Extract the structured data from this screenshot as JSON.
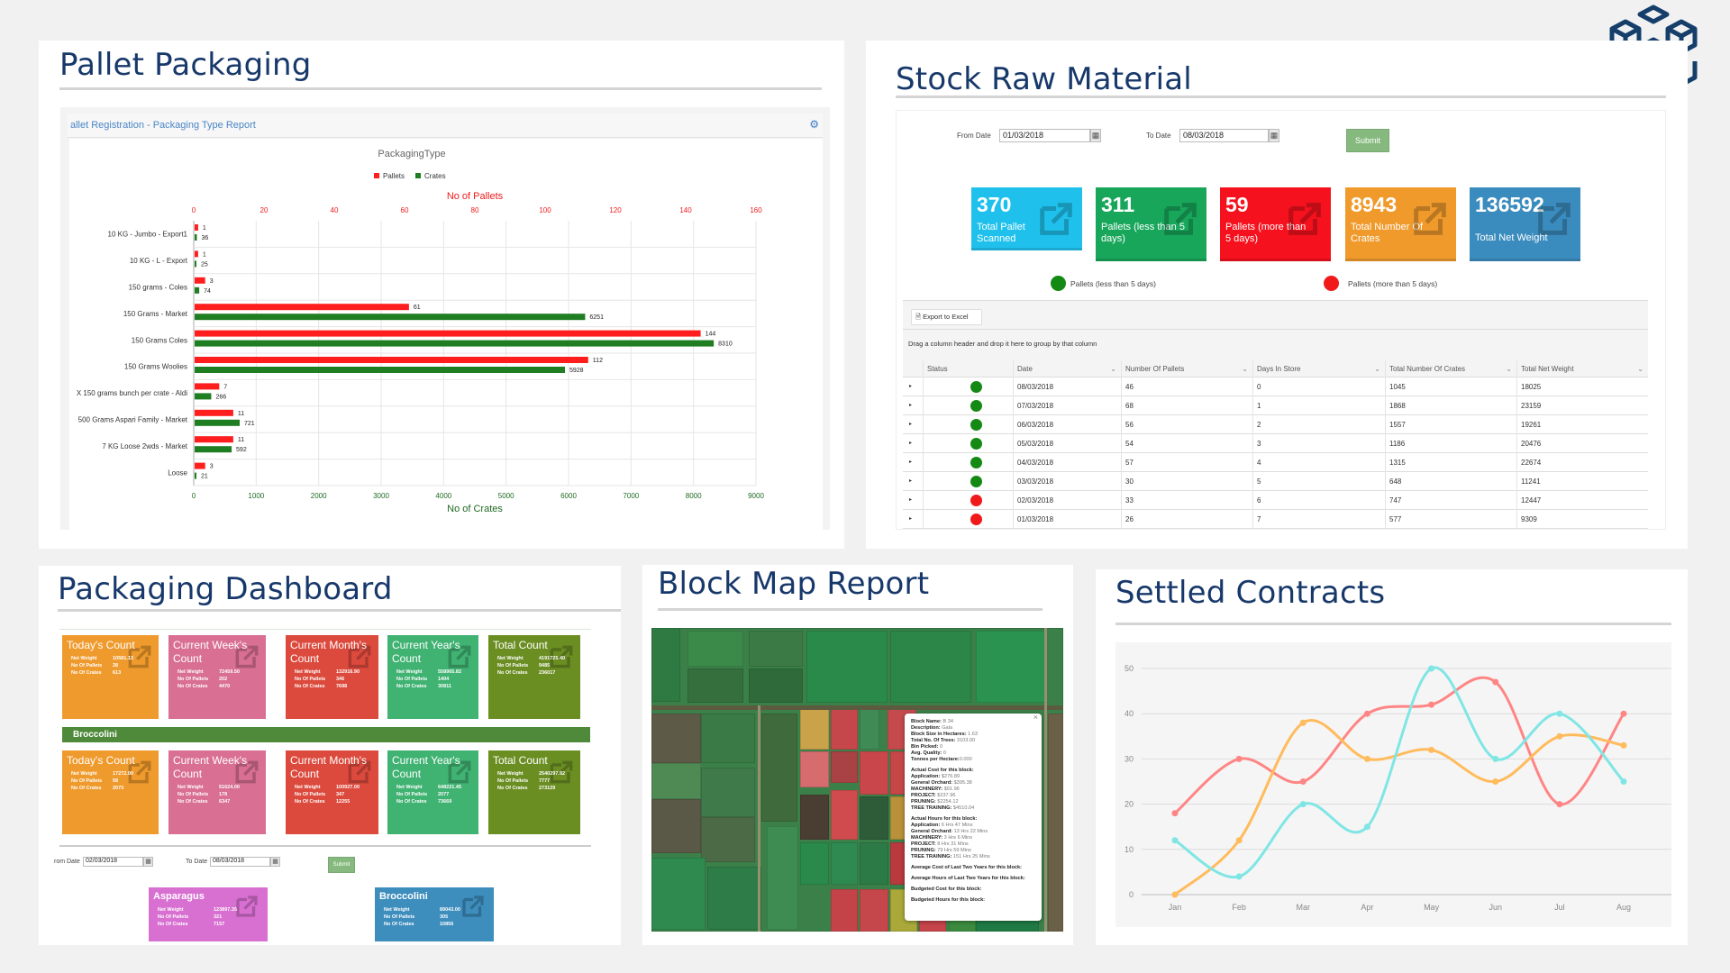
{
  "pallet_packaging": {
    "title": "Pallet Packaging",
    "report_header": "allet Registration - Packaging Type Report",
    "settings_icon": "gear-icon",
    "chart_data": {
      "type": "bar",
      "orientation": "horizontal",
      "title": "PackagingType",
      "categories": [
        "10 KG - Jumbo - Export1",
        "10 KG - L - Export",
        "150 grams - Coles",
        "150 Grams - Market",
        "150 Grams Coles",
        "150 Grams Woolies",
        "X 150 grams bunch per crate - Aldi",
        "500 Grams Aspari Family - Market",
        "7 KG Loose 2wds - Market",
        "Loose"
      ],
      "series": [
        {
          "name": "Pallets",
          "color": "#ff1e1e",
          "axis": "top",
          "values": [
            1,
            1,
            3,
            61,
            144,
            112,
            7,
            11,
            11,
            3
          ]
        },
        {
          "name": "Crates",
          "color": "#1f7d22",
          "axis": "bottom",
          "values": [
            36,
            25,
            74,
            6251,
            8310,
            5928,
            266,
            721,
            592,
            21
          ]
        }
      ],
      "top_axis": {
        "label": "No of Pallets",
        "ticks": [
          "0",
          "20",
          "40",
          "60",
          "80",
          "100",
          "120",
          "140",
          "160"
        ],
        "range": [
          0,
          160
        ]
      },
      "bottom_axis": {
        "label": "No of Crates",
        "ticks": [
          "0",
          "1000",
          "2000",
          "3000",
          "4000",
          "5000",
          "6000",
          "7000",
          "8000",
          "9000"
        ],
        "range": [
          0,
          9000
        ]
      },
      "legend": "top",
      "grid": true
    }
  },
  "stock_raw_material": {
    "title": "Stock Raw Material",
    "from_label": "From Date",
    "from_value": "01/03/2018",
    "to_label": "To Date",
    "to_value": "08/03/2018",
    "submit_label": "Submit",
    "tiles": [
      {
        "value": "370",
        "label": "Total Pallet Scanned",
        "color": "#1fc1ec"
      },
      {
        "value": "311",
        "label": "Pallets (less than 5 days)",
        "color": "#18a65b"
      },
      {
        "value": "59",
        "label": "Pallets (more than 5 days)",
        "color": "#f5111d"
      },
      {
        "value": "8943",
        "label": "Total Number Of Crates",
        "color": "#f09a2c"
      },
      {
        "value": "136592",
        "label": "Total Net Weight",
        "color": "#3b8cbe"
      }
    ],
    "legend": [
      {
        "label": "Pallets (less than 5 days)",
        "color": "#148a14"
      },
      {
        "label": "Pallets (more than 5 days)",
        "color": "#f01a1a"
      }
    ],
    "export_label": "Export to Excel",
    "group_hint": "Drag a column header and drop it here to group by that column",
    "columns": [
      "Status",
      "Date",
      "Number Of Pallets",
      "Days In Store",
      "Total Number Of Crates",
      "Total Net Weight"
    ],
    "rows": [
      {
        "status": "green",
        "date": "08/03/2018",
        "pallets": "46",
        "days": "0",
        "crates": "1045",
        "weight": "18025"
      },
      {
        "status": "green",
        "date": "07/03/2018",
        "pallets": "68",
        "days": "1",
        "crates": "1868",
        "weight": "23159"
      },
      {
        "status": "green",
        "date": "06/03/2018",
        "pallets": "56",
        "days": "2",
        "crates": "1557",
        "weight": "19261"
      },
      {
        "status": "green",
        "date": "05/03/2018",
        "pallets": "54",
        "days": "3",
        "crates": "1186",
        "weight": "20476"
      },
      {
        "status": "green",
        "date": "04/03/2018",
        "pallets": "57",
        "days": "4",
        "crates": "1315",
        "weight": "22674"
      },
      {
        "status": "green",
        "date": "03/03/2018",
        "pallets": "30",
        "days": "5",
        "crates": "648",
        "weight": "11241"
      },
      {
        "status": "red",
        "date": "02/03/2018",
        "pallets": "33",
        "days": "6",
        "crates": "747",
        "weight": "12447"
      },
      {
        "status": "red",
        "date": "01/03/2018",
        "pallets": "26",
        "days": "7",
        "crates": "577",
        "weight": "9309"
      }
    ]
  },
  "packaging_dashboard": {
    "title": "Packaging Dashboard",
    "stat_labels": [
      "Net Weight",
      "No Of Pallets",
      "No Of Crates"
    ],
    "row1": [
      {
        "title": "Today's Count",
        "color": "#ef9a2c",
        "values": [
          "10581.13",
          "28",
          "613"
        ]
      },
      {
        "title": "Current Week's Count",
        "color": "#d96f93",
        "values": [
          "72459.50",
          "202",
          "4470"
        ]
      },
      {
        "title": "Current Month's Count",
        "color": "#dc4a3d",
        "values": [
          "132916.90",
          "346",
          "7698"
        ]
      },
      {
        "title": "Current Year's Count",
        "color": "#40b272",
        "values": [
          "558965.82",
          "1404",
          "30811"
        ]
      },
      {
        "title": "Total Count",
        "color": "#6b8e23",
        "values": [
          "4191725.40",
          "9485",
          "236017"
        ]
      }
    ],
    "section_label": "Broccolini",
    "row2": [
      {
        "title": "Today's Count",
        "color": "#ef9a2c",
        "values": [
          "17272.00",
          "58",
          "2073"
        ]
      },
      {
        "title": "Current Week's Count",
        "color": "#d96f93",
        "values": [
          "51624.00",
          "178",
          "6347"
        ]
      },
      {
        "title": "Current Month's Count",
        "color": "#dc4a3d",
        "values": [
          "100927.00",
          "347",
          "12255"
        ]
      },
      {
        "title": "Current Year's Count",
        "color": "#40b272",
        "values": [
          "648221.45",
          "2077",
          "73669"
        ]
      },
      {
        "title": "Total Count",
        "color": "#6b8e23",
        "values": [
          "2540297.82",
          "7777",
          "273129"
        ]
      }
    ],
    "from_label": "rom Date",
    "from_value": "02/03/2018",
    "to_label": "To Date",
    "to_value": "08/03/2018",
    "submit_label": "Submit",
    "products": [
      {
        "title": "Asparagus",
        "color": "#d870d2",
        "values": [
          "123897.35",
          "321",
          "7157"
        ]
      },
      {
        "title": "Broccolini",
        "color": "#3d8dbd",
        "values": [
          "89043.00",
          "305",
          "10856"
        ]
      }
    ]
  },
  "block_map": {
    "title": "Block Map Report",
    "popup": {
      "close": "×",
      "fields": [
        {
          "k": "Block Name:",
          "v": " B 34"
        },
        {
          "k": "Description:",
          "v": " Gala"
        },
        {
          "k": "Block Size in Hectares:",
          "v": " 1.63"
        },
        {
          "k": "Total No. Of Trees:",
          "v": " 3103.00"
        },
        {
          "k": "Bin Picked:",
          "v": " 0"
        },
        {
          "k": "Avg. Quality:",
          "v": " 0"
        },
        {
          "k": "Tonnes per Hectare:",
          "v": "0.000"
        }
      ],
      "cost_heading": "Actual Cost for this block:",
      "costs": [
        {
          "k": "Application:",
          "v": " $276.89"
        },
        {
          "k": "General Orchard:",
          "v": " $395.38"
        },
        {
          "k": "MACHINERY:",
          "v": " $91.96"
        },
        {
          "k": "PROJECT:",
          "v": " $237.96"
        },
        {
          "k": "PRUNING:",
          "v": " $2254.12"
        },
        {
          "k": "TREE TRAINING:",
          "v": " $4510.04"
        }
      ],
      "hours_heading": "Actual Hours for this block:",
      "hours": [
        {
          "k": "Application:",
          "v": " 6 Hrs 47 Mins"
        },
        {
          "k": "General Orchard:",
          "v": " 13 Hrs 22 Mins"
        },
        {
          "k": "MACHINERY:",
          "v": " 3 Hrs 6 Mins"
        },
        {
          "k": "PROJECT:",
          "v": " 8 Hrs 31 Mins"
        },
        {
          "k": "PRUNING:",
          "v": " 79 Hrs 59 Mins"
        },
        {
          "k": "TREE TRAINING:",
          "v": " 151 Hrs 25 Mins"
        }
      ],
      "footer": [
        "Average Cost of Last Two Years for this block:",
        "Average Hours of Last Two Years for this block:",
        "Budgeted Cost for this block:",
        "Budgeted Hours for this block:"
      ]
    }
  },
  "settled_contracts": {
    "title": "Settled Contracts",
    "chart_data": {
      "type": "line",
      "smooth": true,
      "categories": [
        "Jan",
        "Feb",
        "Mar",
        "Apr",
        "May",
        "Jun",
        "Jul",
        "Aug"
      ],
      "y_ticks": [
        "0",
        "10",
        "20",
        "30",
        "40",
        "50"
      ],
      "ylim": [
        0,
        50
      ],
      "grid": true,
      "series": [
        {
          "color": "#ff8585",
          "values": [
            18,
            30,
            25,
            40,
            42,
            47,
            20,
            40
          ]
        },
        {
          "color": "#ffbb5c",
          "values": [
            0,
            12,
            38,
            30,
            32,
            25,
            35,
            33
          ]
        },
        {
          "color": "#7fe6e4",
          "values": [
            12,
            4,
            20,
            15,
            50,
            30,
            40,
            25
          ]
        }
      ]
    }
  },
  "logo": {
    "icon": "cubes-logo-icon",
    "color": "#153e6b"
  }
}
